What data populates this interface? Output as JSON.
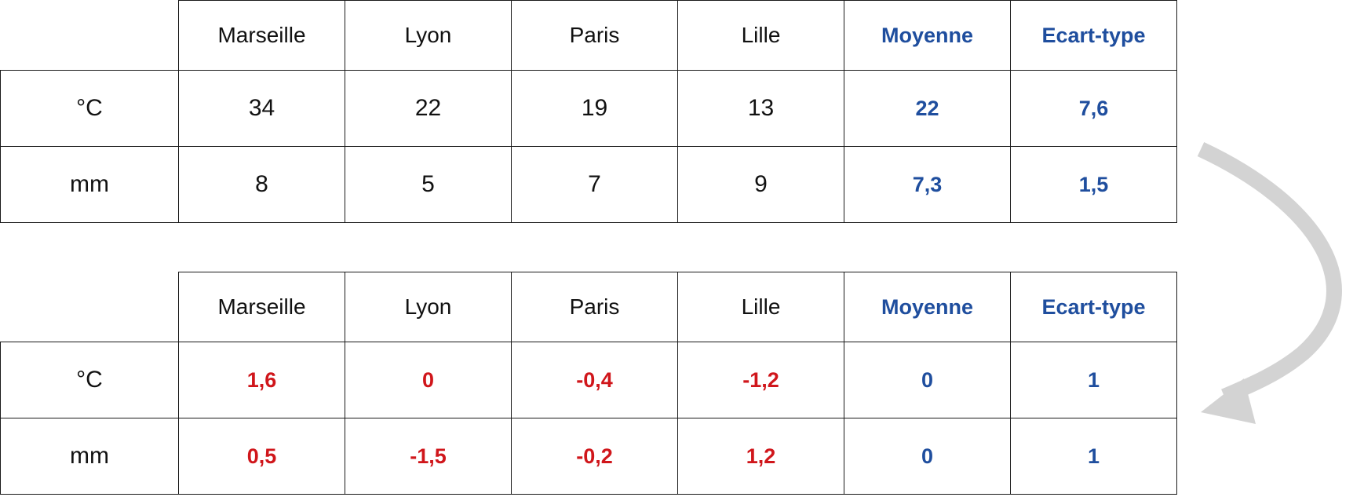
{
  "tables": [
    {
      "columns": [
        "Marseille",
        "Lyon",
        "Paris",
        "Lille",
        "Moyenne",
        "Ecart-type"
      ],
      "rows": [
        {
          "label": "°C",
          "values": [
            "34",
            "22",
            "19",
            "13"
          ],
          "mean": "22",
          "std": "7,6"
        },
        {
          "label": "mm",
          "values": [
            "8",
            "5",
            "7",
            "9"
          ],
          "mean": "7,3",
          "std": "1,5"
        }
      ]
    },
    {
      "columns": [
        "Marseille",
        "Lyon",
        "Paris",
        "Lille",
        "Moyenne",
        "Ecart-type"
      ],
      "rows": [
        {
          "label": "°C",
          "values": [
            "1,6",
            "0",
            "-0,4",
            "-1,2"
          ],
          "mean": "0",
          "std": "1"
        },
        {
          "label": "mm",
          "values": [
            "0,5",
            "-1,5",
            "-0,2",
            "1,2"
          ],
          "mean": "0",
          "std": "1"
        }
      ]
    }
  ],
  "colors": {
    "statistics_blue": "#1f4e9e",
    "standardized_red": "#d0161b",
    "arrow_gray": "#d3d3d3",
    "grid_black": "#1a1a1a"
  },
  "icons": {
    "transform_arrow": "curved-arrow-icon"
  }
}
